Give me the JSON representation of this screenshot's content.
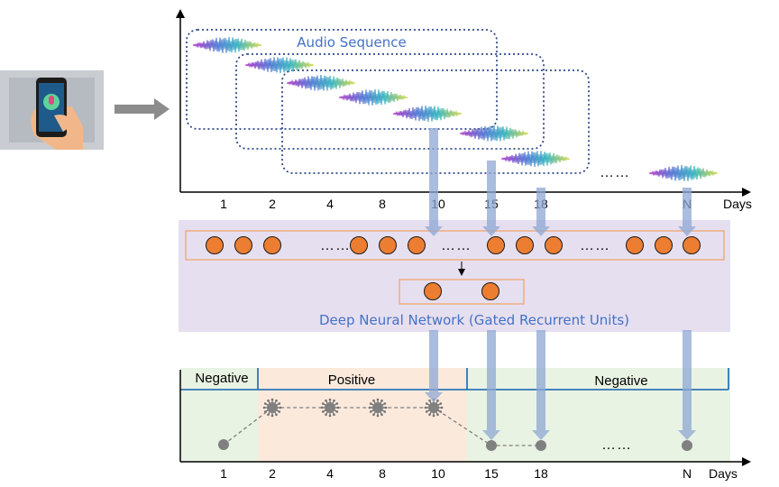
{
  "top_axis": {
    "ticks": [
      "1",
      "2",
      "4",
      "8",
      "10",
      "15",
      "18",
      "N"
    ],
    "unit": "Days",
    "ellipsis": "……"
  },
  "audio_sequence_label": "Audio Sequence",
  "network": {
    "label": "Deep Neural Network (Gated Recurrent Units)",
    "ellipsis": "……"
  },
  "timeline": {
    "ticks": [
      "1",
      "2",
      "4",
      "8",
      "10",
      "15",
      "18",
      "N"
    ],
    "unit": "Days",
    "ellipsis": "……",
    "segments": [
      {
        "label": "Negative",
        "color": "#e9f3e3"
      },
      {
        "label": "Positive",
        "color": "#fbe9dc"
      },
      {
        "label": "Negative",
        "color": "#e9f3e3"
      }
    ]
  },
  "colors": {
    "blue": "#4472c4",
    "arrow_blue": "#8fa8d4",
    "node_orange": "#ed7d31",
    "nn_bg": "#e6dff0",
    "axis_blue": "#2e75b6"
  },
  "chart_data": {
    "type": "line",
    "x": [
      "1",
      "2",
      "4",
      "8",
      "10",
      "15",
      "18",
      "N"
    ],
    "series": [
      {
        "values": [
          "Negative",
          "Positive",
          "Positive",
          "Positive",
          "Positive",
          "Negative",
          "Negative",
          "Negative"
        ]
      }
    ]
  }
}
